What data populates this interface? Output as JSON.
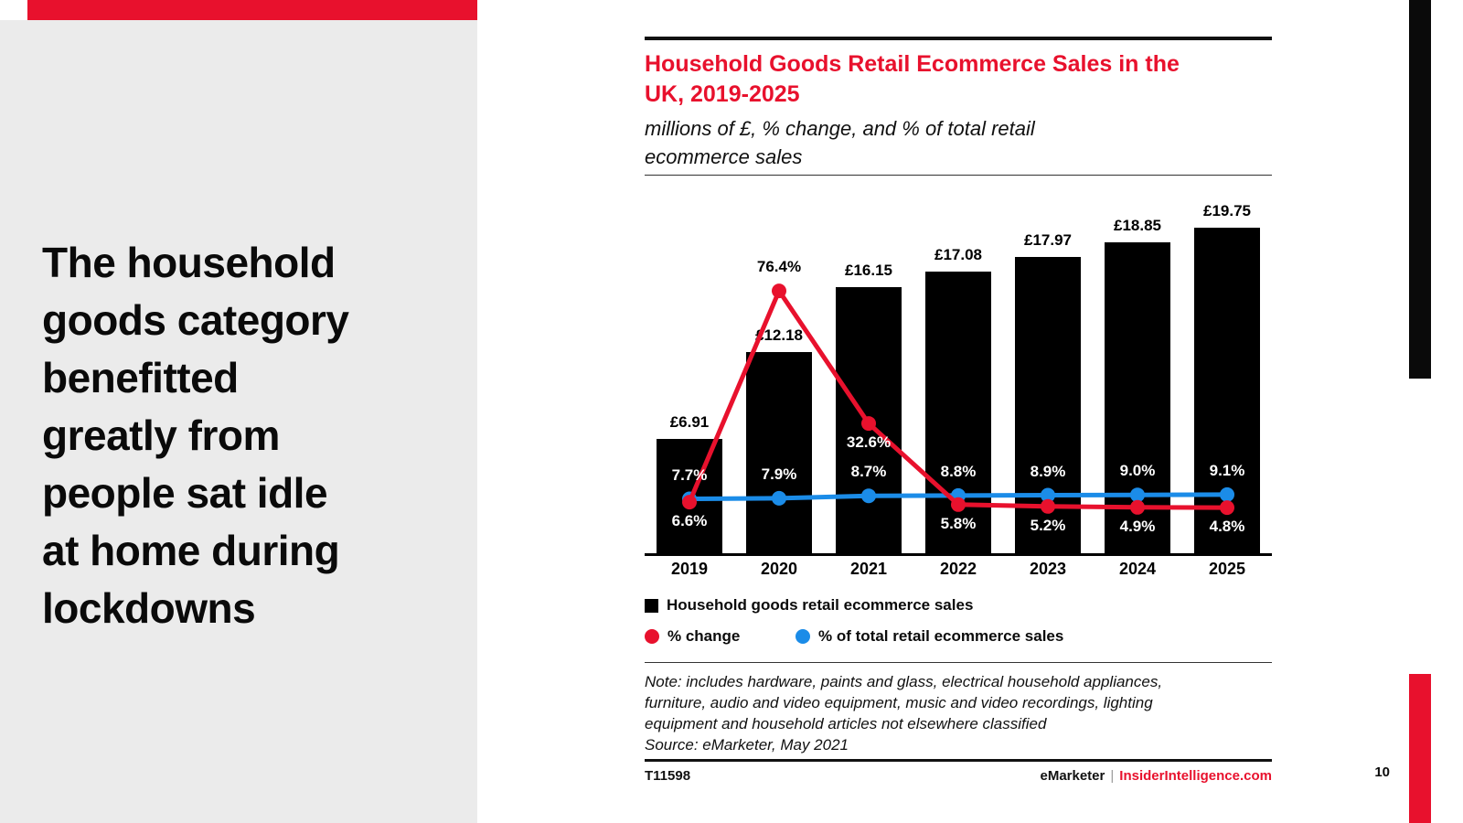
{
  "headline": "The household\ngoods category\nbenefitted\ngreatly from\npeople sat idle\nat home during\nlockdowns",
  "page_number": "10",
  "chart": {
    "title": "Household Goods Retail Ecommerce Sales in the\nUK, 2019-2025",
    "subtitle": "millions of £, % change, and % of total retail\necommerce sales",
    "note": "Note: includes hardware, paints and glass, electrical household appliances,\nfurniture, audio and video equipment, music and video recordings, lighting\nequipment and household articles not elsewhere classified",
    "source": "Source: eMarketer, May 2021",
    "footer_id": "T11598",
    "footer_brand": "eMarketer",
    "footer_sep": "|",
    "footer_site": "InsiderIntelligence.com",
    "legend": [
      {
        "label": "Household goods retail ecommerce sales",
        "marker": "square",
        "color": "#000000"
      },
      {
        "label": "% change",
        "marker": "circle",
        "color": "#e8112d"
      },
      {
        "label": "% of total retail ecommerce sales",
        "marker": "circle",
        "color": "#1b8ce8"
      }
    ]
  },
  "chart_data": {
    "type": "bar+line combo",
    "title": "Household Goods Retail Ecommerce Sales in the UK, 2019-2025",
    "subtitle": "millions of £, % change, and % of total retail ecommerce sales",
    "categories": [
      "2019",
      "2020",
      "2021",
      "2022",
      "2023",
      "2024",
      "2025"
    ],
    "series": [
      {
        "name": "Household goods retail ecommerce sales",
        "type": "bar",
        "color": "#000000",
        "unit": "millions of £",
        "values": [
          6.91,
          12.18,
          16.15,
          17.08,
          17.97,
          18.85,
          19.75
        ],
        "labels": [
          "£6.91",
          "£12.18",
          "£16.15",
          "£17.08",
          "£17.97",
          "£18.85",
          "£19.75"
        ]
      },
      {
        "name": "% change",
        "type": "line",
        "color": "#e8112d",
        "unit": "%",
        "values": [
          6.6,
          76.4,
          32.6,
          5.8,
          5.2,
          4.9,
          4.8
        ],
        "labels": [
          "6.6%",
          "76.4%",
          "32.6%",
          "5.8%",
          "5.2%",
          "4.9%",
          "4.8%"
        ],
        "label_placement": [
          "below",
          "above",
          "below",
          "below",
          "below",
          "below",
          "below"
        ],
        "label_colors": [
          "#ffffff",
          "#000000",
          "#ffffff",
          "#ffffff",
          "#ffffff",
          "#ffffff",
          "#ffffff"
        ]
      },
      {
        "name": "% of total retail ecommerce sales",
        "type": "line",
        "color": "#1b8ce8",
        "unit": "%",
        "values": [
          7.7,
          7.9,
          8.7,
          8.8,
          8.9,
          9.0,
          9.1
        ],
        "labels": [
          "7.7%",
          "7.9%",
          "8.7%",
          "8.8%",
          "8.9%",
          "9.0%",
          "9.1%"
        ],
        "label_placement": [
          "above",
          "above",
          "above",
          "above",
          "above",
          "above",
          "above"
        ],
        "label_colors": [
          "#ffffff",
          "#ffffff",
          "#ffffff",
          "#ffffff",
          "#ffffff",
          "#ffffff",
          "#ffffff"
        ]
      }
    ],
    "axes": {
      "value_axis_visible": false,
      "grid": false,
      "legend_position": "bottom"
    }
  }
}
